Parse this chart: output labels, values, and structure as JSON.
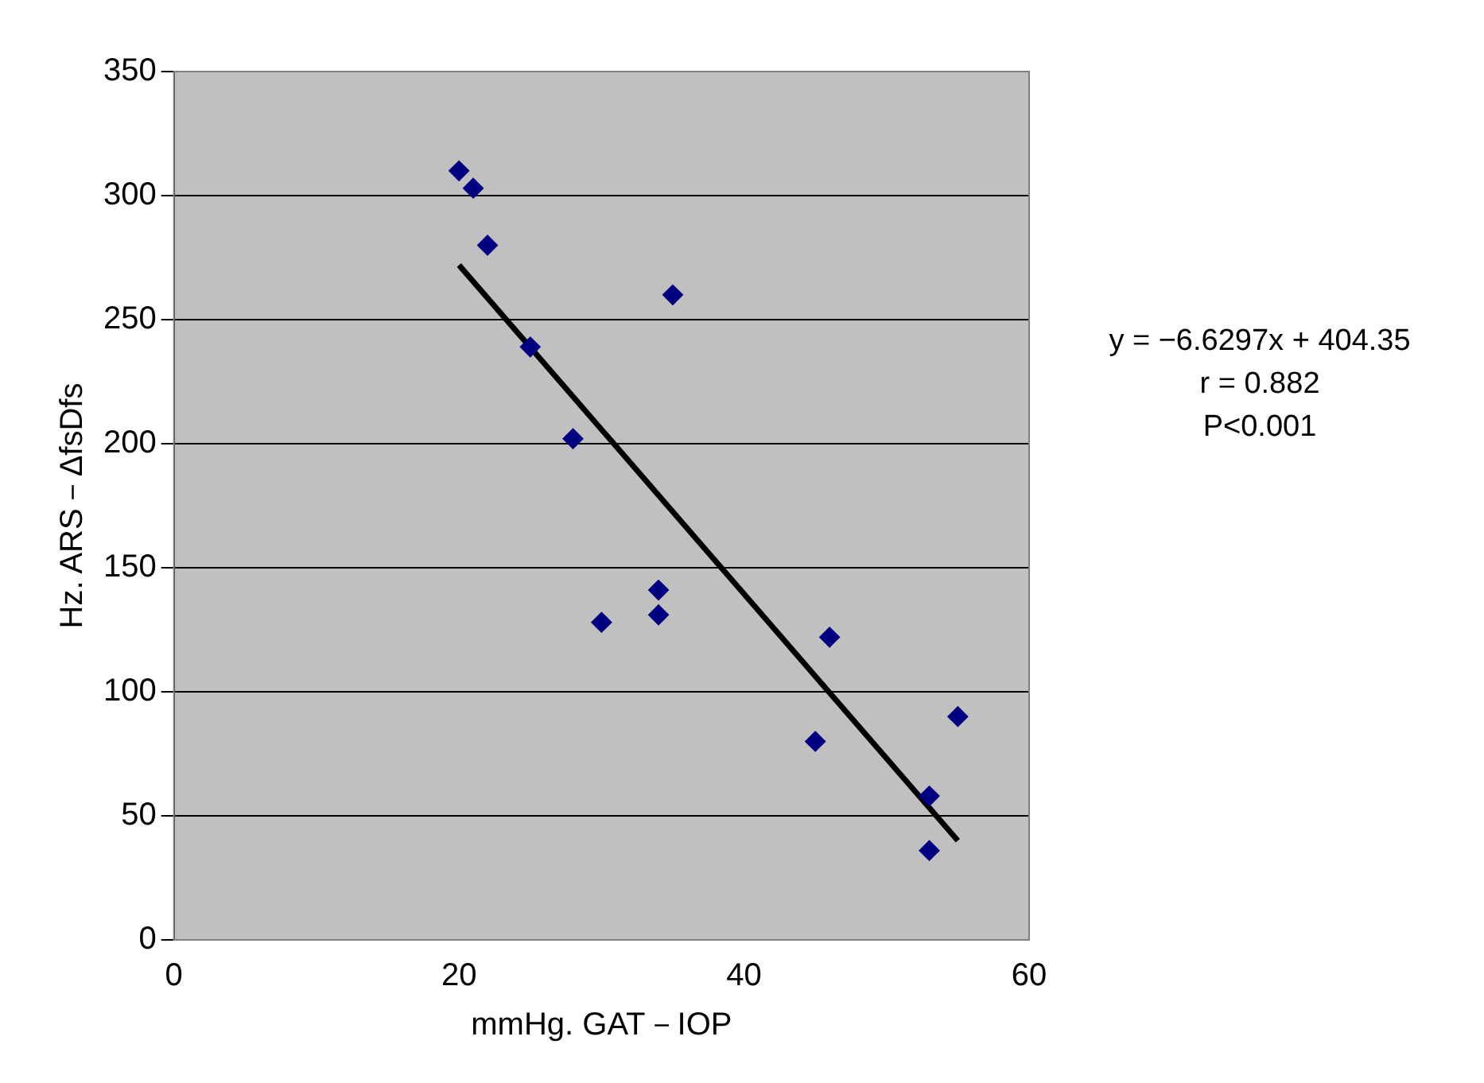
{
  "chart_data": {
    "type": "scatter",
    "xlabel": "mmHg. GAT－IOP",
    "ylabel": "Hz. ARS－ΔfsDfs",
    "annotations": [
      "y = −6.6297x + 404.35",
      "r = 0.882",
      "P<0.001"
    ],
    "series": [
      {
        "color": "#000080",
        "marker": "diamond",
        "x": [
          20,
          21,
          22,
          25,
          28,
          30,
          34,
          34,
          35,
          45,
          46,
          55,
          53,
          53
        ],
        "values": [
          310,
          303,
          280,
          239,
          202,
          128,
          141,
          131,
          260,
          80,
          122,
          90,
          58,
          36
        ]
      },
      {
        "type": "line",
        "color": "#000000",
        "marker": "none",
        "x": [
          20,
          55
        ],
        "values": [
          272,
          40
        ]
      }
    ],
    "xlim": [
      0,
      60
    ],
    "xticks": [
      0,
      20,
      40,
      60
    ],
    "ylim": [
      0,
      350
    ],
    "yticks": [
      0,
      50,
      100,
      150,
      200,
      250,
      300,
      350
    ],
    "grid": "y",
    "legend": false,
    "line_style": "solid"
  }
}
